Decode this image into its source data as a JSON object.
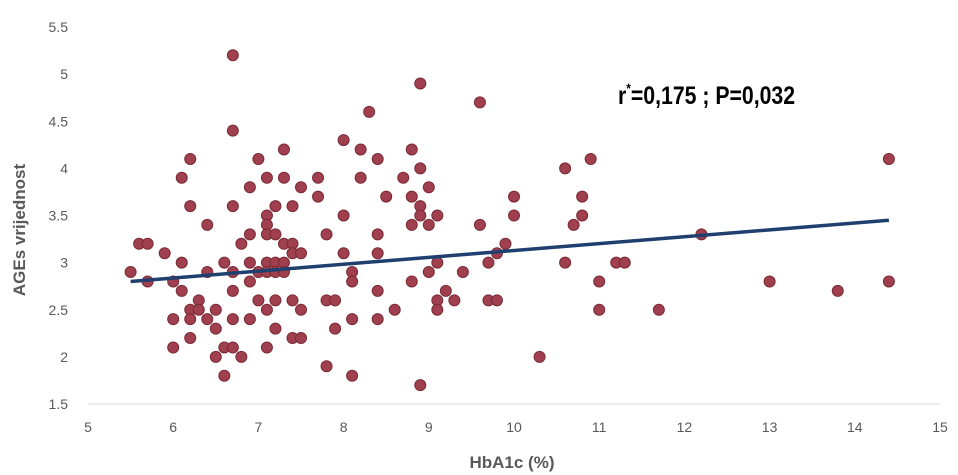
{
  "chart_data": {
    "type": "scatter",
    "xlabel": "HbA1c (%)",
    "ylabel": "AGEs vrijednost",
    "xlim": [
      5,
      15
    ],
    "ylim": [
      1.5,
      5.5
    ],
    "xticks": [
      "5",
      "6",
      "7",
      "8",
      "9",
      "10",
      "11",
      "12",
      "13",
      "14",
      "15"
    ],
    "yticks": [
      "1.5",
      "2",
      "2.5",
      "3",
      "3.5",
      "4",
      "4.5",
      "5",
      "5.5"
    ],
    "grid": false,
    "legend": "none",
    "marker_color": "#a0404e",
    "marker_edge": "#7a2a36",
    "trendline_color": "#1f3f6e",
    "annotation": {
      "prefix": "r",
      "sup": "*",
      "rest": "=0,175  ; P=0,032"
    },
    "trendline": {
      "x": [
        5.5,
        14.4
      ],
      "y": [
        2.8,
        3.45
      ]
    },
    "points": [
      [
        5.5,
        2.9
      ],
      [
        5.6,
        3.2
      ],
      [
        5.7,
        3.2
      ],
      [
        5.7,
        2.8
      ],
      [
        5.9,
        3.1
      ],
      [
        6.0,
        2.8
      ],
      [
        6.0,
        2.4
      ],
      [
        6.0,
        2.1
      ],
      [
        6.1,
        3.9
      ],
      [
        6.1,
        3.0
      ],
      [
        6.1,
        2.7
      ],
      [
        6.2,
        4.1
      ],
      [
        6.2,
        3.6
      ],
      [
        6.2,
        2.5
      ],
      [
        6.2,
        2.4
      ],
      [
        6.2,
        2.2
      ],
      [
        6.3,
        2.6
      ],
      [
        6.3,
        2.5
      ],
      [
        6.4,
        3.4
      ],
      [
        6.4,
        2.9
      ],
      [
        6.4,
        2.4
      ],
      [
        6.5,
        2.5
      ],
      [
        6.5,
        2.3
      ],
      [
        6.5,
        2.0
      ],
      [
        6.6,
        3.0
      ],
      [
        6.6,
        2.1
      ],
      [
        6.6,
        1.8
      ],
      [
        6.7,
        5.2
      ],
      [
        6.7,
        4.4
      ],
      [
        6.7,
        3.6
      ],
      [
        6.7,
        2.9
      ],
      [
        6.7,
        2.7
      ],
      [
        6.7,
        2.4
      ],
      [
        6.7,
        2.1
      ],
      [
        6.8,
        3.2
      ],
      [
        6.8,
        2.0
      ],
      [
        6.9,
        3.8
      ],
      [
        6.9,
        3.3
      ],
      [
        6.9,
        3.0
      ],
      [
        6.9,
        2.8
      ],
      [
        6.9,
        2.4
      ],
      [
        7.0,
        4.1
      ],
      [
        7.0,
        2.9
      ],
      [
        7.0,
        2.6
      ],
      [
        7.1,
        3.9
      ],
      [
        7.1,
        3.5
      ],
      [
        7.1,
        3.4
      ],
      [
        7.1,
        3.3
      ],
      [
        7.1,
        3.0
      ],
      [
        7.1,
        2.9
      ],
      [
        7.1,
        2.5
      ],
      [
        7.1,
        2.1
      ],
      [
        7.2,
        3.6
      ],
      [
        7.2,
        3.3
      ],
      [
        7.2,
        3.0
      ],
      [
        7.2,
        2.9
      ],
      [
        7.2,
        2.6
      ],
      [
        7.2,
        2.3
      ],
      [
        7.3,
        4.2
      ],
      [
        7.3,
        3.9
      ],
      [
        7.3,
        3.2
      ],
      [
        7.3,
        3.0
      ],
      [
        7.3,
        2.9
      ],
      [
        7.4,
        3.6
      ],
      [
        7.4,
        3.2
      ],
      [
        7.4,
        3.1
      ],
      [
        7.4,
        2.6
      ],
      [
        7.4,
        2.2
      ],
      [
        7.5,
        3.8
      ],
      [
        7.5,
        3.1
      ],
      [
        7.5,
        2.5
      ],
      [
        7.5,
        2.2
      ],
      [
        7.7,
        3.9
      ],
      [
        7.7,
        3.7
      ],
      [
        7.8,
        3.3
      ],
      [
        7.8,
        2.6
      ],
      [
        7.8,
        1.9
      ],
      [
        7.9,
        2.6
      ],
      [
        7.9,
        2.3
      ],
      [
        8.0,
        4.3
      ],
      [
        8.0,
        3.5
      ],
      [
        8.0,
        3.1
      ],
      [
        8.1,
        2.9
      ],
      [
        8.1,
        2.8
      ],
      [
        8.1,
        2.4
      ],
      [
        8.1,
        1.8
      ],
      [
        8.2,
        4.2
      ],
      [
        8.2,
        3.9
      ],
      [
        8.3,
        4.6
      ],
      [
        8.4,
        4.1
      ],
      [
        8.4,
        3.3
      ],
      [
        8.4,
        3.1
      ],
      [
        8.4,
        2.7
      ],
      [
        8.4,
        2.4
      ],
      [
        8.5,
        3.7
      ],
      [
        8.6,
        2.5
      ],
      [
        8.7,
        3.9
      ],
      [
        8.8,
        4.2
      ],
      [
        8.8,
        3.7
      ],
      [
        8.8,
        3.4
      ],
      [
        8.8,
        2.8
      ],
      [
        8.9,
        4.9
      ],
      [
        8.9,
        4.0
      ],
      [
        8.9,
        3.6
      ],
      [
        8.9,
        3.5
      ],
      [
        8.9,
        1.7
      ],
      [
        9.0,
        3.8
      ],
      [
        9.0,
        3.4
      ],
      [
        9.0,
        2.9
      ],
      [
        9.1,
        3.5
      ],
      [
        9.1,
        3.0
      ],
      [
        9.1,
        2.6
      ],
      [
        9.1,
        2.5
      ],
      [
        9.2,
        2.7
      ],
      [
        9.3,
        2.6
      ],
      [
        9.4,
        2.9
      ],
      [
        9.6,
        4.7
      ],
      [
        9.6,
        3.4
      ],
      [
        9.7,
        3.0
      ],
      [
        9.7,
        2.6
      ],
      [
        9.8,
        3.1
      ],
      [
        9.8,
        2.6
      ],
      [
        9.9,
        3.2
      ],
      [
        10.0,
        3.7
      ],
      [
        10.0,
        3.5
      ],
      [
        10.3,
        2.0
      ],
      [
        10.6,
        4.0
      ],
      [
        10.6,
        3.0
      ],
      [
        10.7,
        3.4
      ],
      [
        10.8,
        3.7
      ],
      [
        10.8,
        3.5
      ],
      [
        10.9,
        4.1
      ],
      [
        11.0,
        2.8
      ],
      [
        11.0,
        2.5
      ],
      [
        11.2,
        3.0
      ],
      [
        11.3,
        3.0
      ],
      [
        11.7,
        2.5
      ],
      [
        12.2,
        3.3
      ],
      [
        13.0,
        2.8
      ],
      [
        13.8,
        2.7
      ],
      [
        14.4,
        4.1
      ],
      [
        14.4,
        2.8
      ]
    ]
  }
}
